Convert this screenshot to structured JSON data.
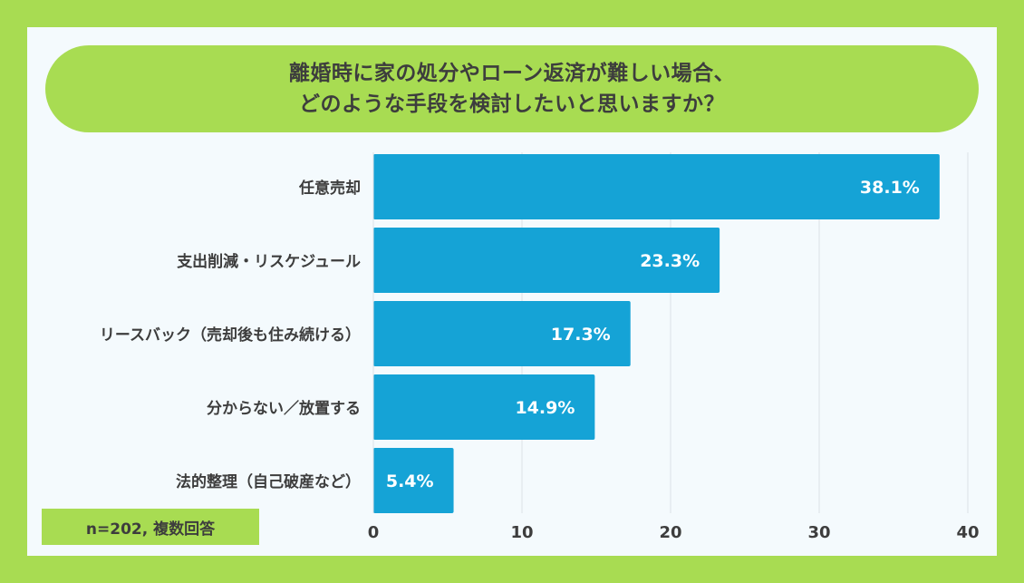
{
  "title": {
    "line1": "離婚時に家の処分やローン返済が難しい場合、",
    "line2": "どのような手段を検討したいと思いますか？"
  },
  "note": "n=202, 複数回答",
  "colors": {
    "frame": "#a8dc52",
    "panel": "#f4fafd",
    "bar": "#15a3d6",
    "grid": "#dde3e8",
    "label_text": "#3d3d3d",
    "bar_text": "#ffffff"
  },
  "chart_data": {
    "type": "bar",
    "orientation": "horizontal",
    "categories": [
      "任意売却",
      "支出削減・リスケジュール",
      "リースバック（売却後も住み続ける）",
      "分からない／放置する",
      "法的整理（自己破産など）"
    ],
    "values": [
      38.1,
      23.3,
      17.3,
      14.9,
      5.4
    ],
    "value_labels": [
      "38.1%",
      "23.3%",
      "17.3%",
      "14.9%",
      "5.4%"
    ],
    "x_ticks": [
      "0",
      "10",
      "20",
      "30",
      "40"
    ],
    "xlim": [
      0,
      40
    ],
    "grid": true,
    "title": "離婚時に家の処分やローン返済が難しい場合、どのような手段を検討したいと思いますか？"
  }
}
